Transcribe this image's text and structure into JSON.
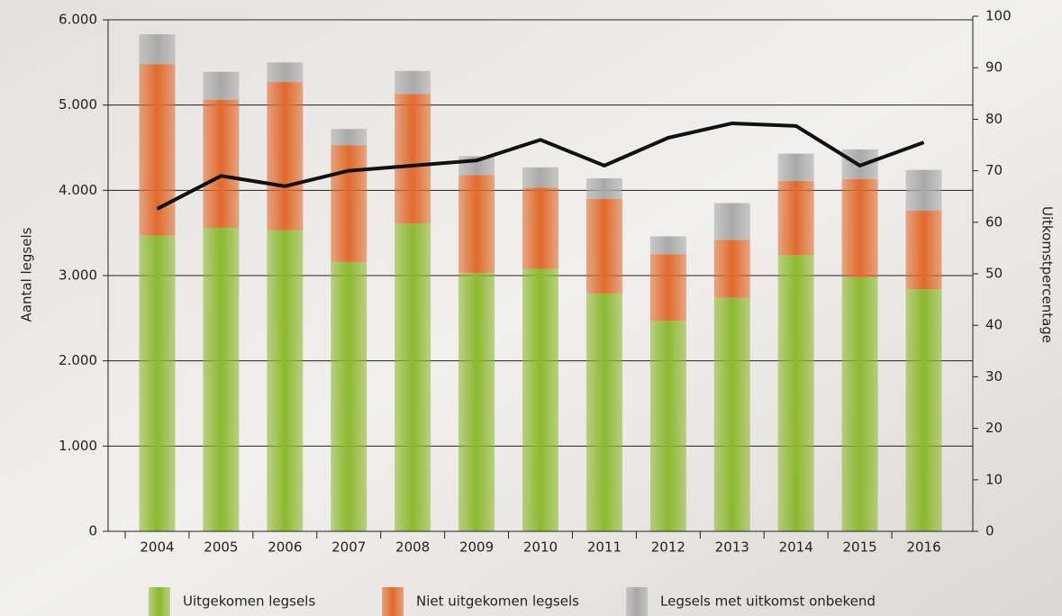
{
  "chart_data": {
    "type": "bar",
    "categories": [
      "2004",
      "2005",
      "2006",
      "2007",
      "2008",
      "2009",
      "2010",
      "2011",
      "2012",
      "2013",
      "2014",
      "2015",
      "2016"
    ],
    "series": [
      {
        "name": "Uitgekomen legsels",
        "color": "#8db82e",
        "values": [
          3470,
          3560,
          3530,
          3160,
          3610,
          3030,
          3080,
          2790,
          2470,
          2740,
          3240,
          2980,
          2840
        ]
      },
      {
        "name": "Niet uitgekomen legsels",
        "color": "#e06a2c",
        "values": [
          2010,
          1500,
          1740,
          1370,
          1520,
          1150,
          950,
          1110,
          780,
          680,
          870,
          1150,
          920
        ]
      },
      {
        "name": "Legsels met uitkomst onbekend",
        "color": "#a9a9a9",
        "values": [
          350,
          330,
          230,
          190,
          270,
          220,
          240,
          240,
          210,
          430,
          320,
          350,
          480
        ]
      },
      {
        "type": "line",
        "axis": "y2",
        "color": "#111111",
        "values": [
          62.6,
          69,
          67,
          70,
          71,
          72,
          76,
          71,
          76.4,
          79.2,
          78.7,
          71,
          75.5
        ]
      }
    ],
    "ylabel": "Aantal legsels",
    "y2label": "Uitkomstpercentage",
    "ylim": [
      0,
      6000
    ],
    "yticks": [
      0,
      {
        "value": 1000,
        "label": "1.000"
      },
      {
        "value": 2000,
        "label": "2.000"
      },
      {
        "value": 3000,
        "label": "3.000"
      },
      {
        "value": 4000,
        "label": "4.000"
      },
      {
        "value": 5000,
        "label": "5.000"
      },
      {
        "value": 6000,
        "label": "6.000"
      }
    ],
    "y2lim": [
      0,
      100
    ],
    "y2ticks": [
      0,
      10,
      20,
      30,
      40,
      50,
      60,
      70,
      80,
      90,
      100
    ],
    "stacked": true,
    "grid": true
  }
}
